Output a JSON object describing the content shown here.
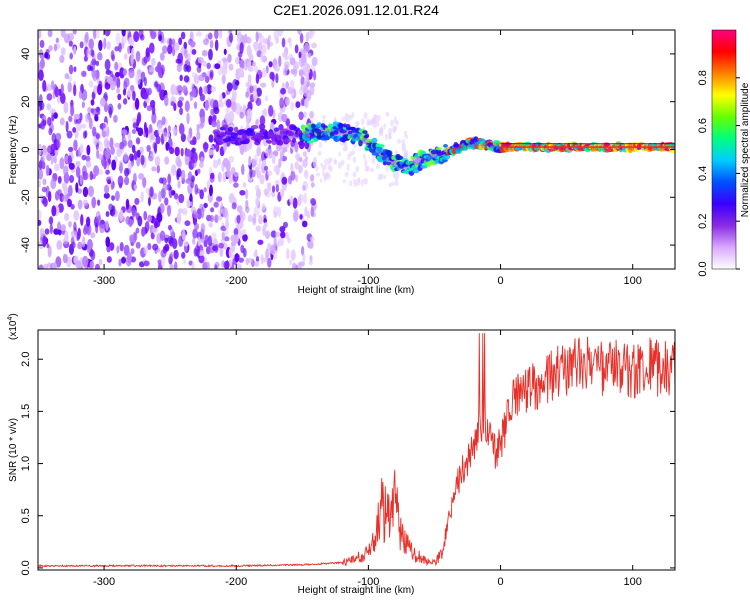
{
  "title": "C2E1.2026.091.12.01.R24",
  "chart_data": [
    {
      "type": "heatmap",
      "name": "spectrogram",
      "xlabel": "Height of straight line (km)",
      "ylabel": "Frequency (Hz)",
      "xlim": [
        -350,
        132
      ],
      "ylim": [
        -50,
        50
      ],
      "x_ticks": [
        -300,
        -200,
        -100,
        0,
        100
      ],
      "y_ticks": [
        -40,
        -20,
        0,
        20,
        40
      ],
      "x_tick_labels": [
        "-300",
        "-200",
        "-100",
        "0",
        "100"
      ],
      "y_tick_labels": [
        "-40",
        "-20",
        "0",
        "20",
        "40"
      ],
      "colorbar": {
        "label": "Normalized spectral amplitude",
        "range": [
          0,
          1
        ],
        "ticks": [
          0.0,
          0.2,
          0.4,
          0.6,
          0.8
        ],
        "tick_labels": [
          "0.0",
          "0.2",
          "0.4",
          "0.6",
          "0.8"
        ],
        "colors": [
          "#ffffff",
          "#d9a8ff",
          "#8a2be2",
          "#3a00ff",
          "#0050ff",
          "#00ccff",
          "#00ff80",
          "#66ff00",
          "#ffff00",
          "#ff8000",
          "#ff0000",
          "#ff0080"
        ]
      },
      "ridge": {
        "x": [
          -150,
          -140,
          -130,
          -120,
          -110,
          -100,
          -90,
          -80,
          -70,
          -60,
          -50,
          -40,
          -30,
          -20,
          -10,
          0,
          20,
          40,
          60,
          80,
          100,
          132
        ],
        "y": [
          6,
          7,
          7,
          7.5,
          6,
          3,
          -2,
          -6,
          -7,
          -4,
          -3,
          -1,
          1,
          3,
          2,
          1,
          1,
          1,
          1,
          1,
          1,
          1
        ]
      },
      "noise_region_xmax": -140
    },
    {
      "type": "line",
      "name": "snr",
      "xlabel": "Height of straight line (km)",
      "ylabel": "SNR (10 * v/v)",
      "scale_label": "(x10",
      "scale_exp": "4",
      "scale_close": ")",
      "xlim": [
        -350,
        132
      ],
      "ylim": [
        -0.02,
        2.28
      ],
      "x_ticks": [
        -300,
        -200,
        -100,
        0,
        100
      ],
      "y_ticks": [
        0.0,
        0.5,
        1.0,
        1.5,
        2.0
      ],
      "x_tick_labels": [
        "-300",
        "-200",
        "-100",
        "0",
        "100"
      ],
      "y_tick_labels": [
        "0.0",
        "0.5",
        "1.0",
        "1.5",
        "2.0"
      ],
      "color": "#e8302a",
      "series": [
        {
          "name": "SNR",
          "x": [
            -350,
            -300,
            -250,
            -200,
            -150,
            -120,
            -110,
            -100,
            -95,
            -90,
            -85,
            -80,
            -75,
            -70,
            -65,
            -60,
            -55,
            -50,
            -45,
            -40,
            -35,
            -30,
            -25,
            -20,
            -15,
            -10,
            -5,
            0,
            5,
            10,
            20,
            30,
            40,
            50,
            60,
            70,
            80,
            90,
            100,
            110,
            120,
            132
          ],
          "y": [
            0.02,
            0.02,
            0.02,
            0.02,
            0.03,
            0.05,
            0.08,
            0.15,
            0.3,
            0.55,
            0.45,
            0.6,
            0.35,
            0.2,
            0.12,
            0.1,
            0.06,
            0.05,
            0.12,
            0.4,
            0.7,
            0.9,
            1.0,
            1.2,
            1.4,
            1.3,
            1.1,
            1.2,
            1.4,
            1.6,
            1.7,
            1.75,
            1.85,
            1.9,
            1.95,
            1.95,
            1.9,
            1.95,
            1.9,
            1.95,
            1.9,
            1.9
          ]
        }
      ]
    }
  ]
}
